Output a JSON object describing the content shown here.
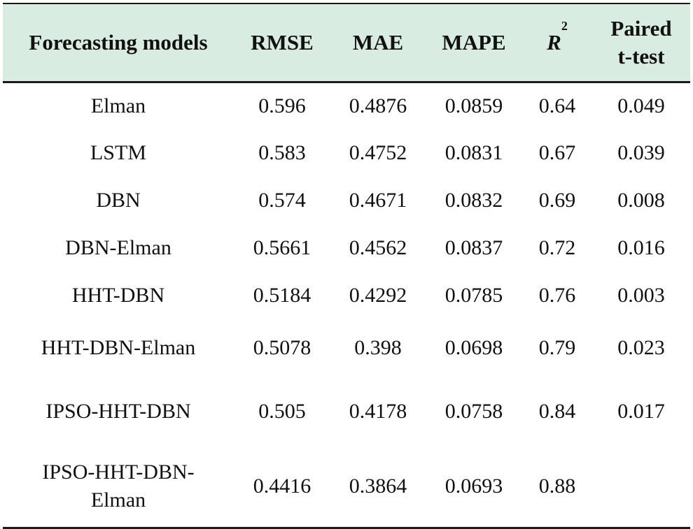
{
  "table": {
    "headers": {
      "model": "Forecasting models",
      "rmse": "RMSE",
      "mae": "MAE",
      "mape": "MAPE",
      "r2_base": "R",
      "r2_sup": "2",
      "paired_line1": "Paired",
      "paired_line2": "t-test"
    },
    "rows": [
      {
        "model": "Elman",
        "rmse": "0.596",
        "mae": "0.4876",
        "mape": "0.0859",
        "r2": "0.64",
        "paired": "0.049"
      },
      {
        "model": "LSTM",
        "rmse": "0.583",
        "mae": "0.4752",
        "mape": "0.0831",
        "r2": "0.67",
        "paired": "0.039"
      },
      {
        "model": "DBN",
        "rmse": "0.574",
        "mae": "0.4671",
        "mape": "0.0832",
        "r2": "0.69",
        "paired": "0.008"
      },
      {
        "model": "DBN-Elman",
        "rmse": "0.5661",
        "mae": "0.4562",
        "mape": "0.0837",
        "r2": "0.72",
        "paired": "0.016"
      },
      {
        "model": "HHT-DBN",
        "rmse": "0.5184",
        "mae": "0.4292",
        "mape": "0.0785",
        "r2": "0.76",
        "paired": "0.003"
      },
      {
        "model": "HHT-DBN-Elman",
        "rmse": "0.5078",
        "mae": "0.398",
        "mape": "0.0698",
        "r2": "0.79",
        "paired": "0.023"
      },
      {
        "model": "IPSO-HHT-DBN",
        "rmse": "0.505",
        "mae": "0.4178",
        "mape": "0.0758",
        "r2": "0.84",
        "paired": "0.017"
      },
      {
        "model_line1": "IPSO-HHT-DBN-",
        "model_line2": "Elman",
        "rmse": "0.4416",
        "mae": "0.3864",
        "mape": "0.0693",
        "r2": "0.88",
        "paired": ""
      }
    ]
  }
}
